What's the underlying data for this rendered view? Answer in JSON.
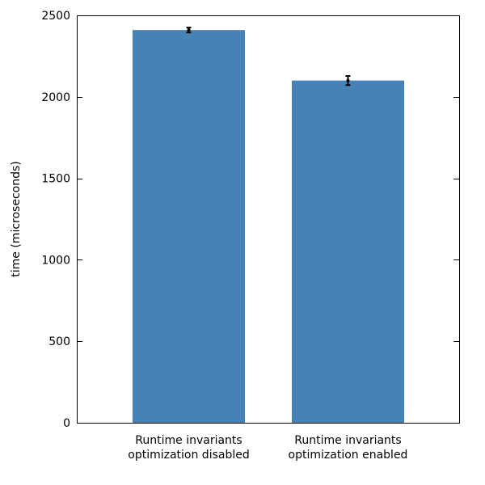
{
  "chart_data": {
    "type": "bar",
    "title": "",
    "xlabel": "",
    "ylabel": "time (microseconds)",
    "ylim": [
      0,
      2500
    ],
    "yticks": [
      0,
      500,
      1000,
      1500,
      2000,
      2500
    ],
    "grid": false,
    "categories": [
      [
        "Runtime invariants",
        "optimization disabled"
      ],
      [
        "Runtime invariants",
        "optimization enabled"
      ]
    ],
    "values": [
      2410,
      2100
    ],
    "errors": [
      15,
      28
    ],
    "bar_color": "#4682b4",
    "error_color": "#000000"
  }
}
